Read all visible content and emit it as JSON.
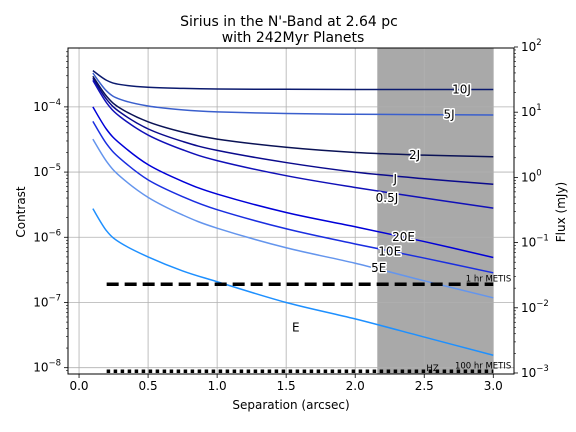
{
  "chart_data": {
    "type": "line",
    "title": "Sirius in the N'-Band at 2.64 pc",
    "subtitle": "with 242Myr Planets",
    "xlabel": "Separation (arcsec)",
    "ylabel": "Contrast",
    "ylabel_right": "Flux (mJy)",
    "xlim": [
      -0.08,
      3.15
    ],
    "ylim": [
      8e-09,
      0.0008
    ],
    "yscale": "log",
    "y2lim": [
      0.000965,
      96.5
    ],
    "grid": true,
    "xticks": [
      "0.0",
      "0.5",
      "1.0",
      "1.5",
      "2.0",
      "2.5",
      "3.0"
    ],
    "xtick_values": [
      0.0,
      0.5,
      1.0,
      1.5,
      2.0,
      2.5,
      3.0
    ],
    "yticks_left": [
      {
        "base": "10",
        "exp": "−8",
        "value": 1e-08
      },
      {
        "base": "10",
        "exp": "−7",
        "value": 1e-07
      },
      {
        "base": "10",
        "exp": "−6",
        "value": 1e-06
      },
      {
        "base": "10",
        "exp": "−5",
        "value": 1e-05
      },
      {
        "base": "10",
        "exp": "−4",
        "value": 0.0001
      }
    ],
    "yticks_right": [
      {
        "base": "10",
        "exp": "−3",
        "value": 0.001
      },
      {
        "base": "10",
        "exp": "−2",
        "value": 0.01
      },
      {
        "base": "10",
        "exp": "−1",
        "value": 0.1
      },
      {
        "base": "10",
        "exp": "0",
        "value": 1
      },
      {
        "base": "10",
        "exp": "1",
        "value": 10
      },
      {
        "base": "10",
        "exp": "2",
        "value": 100
      }
    ],
    "shaded_region": {
      "x_start": 2.16,
      "x_end": 3.0,
      "label": "HZ",
      "color": "#a9a9a9"
    },
    "series": [
      {
        "name": "10J",
        "color": "#0b1a6e",
        "x": [
          0.1,
          0.2,
          0.3,
          0.5,
          0.75,
          1.0,
          1.5,
          2.0,
          2.5,
          3.0
        ],
        "values": [
          0.00036,
          0.000255,
          0.00022,
          0.0002,
          0.000192,
          0.000188,
          0.000186,
          0.000185,
          0.000185,
          0.000185
        ]
      },
      {
        "name": "5J",
        "color": "#3a5fcd",
        "x": [
          0.1,
          0.2,
          0.3,
          0.5,
          0.75,
          1.0,
          1.5,
          2.0,
          2.5,
          3.0
        ],
        "values": [
          0.00033,
          0.000175,
          0.00013,
          0.000103,
          9e-05,
          8.4e-05,
          7.9e-05,
          7.7e-05,
          7.6e-05,
          7.5e-05
        ]
      },
      {
        "name": "2J",
        "color": "#0a1255",
        "x": [
          0.1,
          0.2,
          0.3,
          0.5,
          0.75,
          1.0,
          1.5,
          2.0,
          2.5,
          3.0
        ],
        "values": [
          0.000295,
          0.000145,
          9.5e-05,
          5.9e-05,
          4.1e-05,
          3.2e-05,
          2.4e-05,
          2e-05,
          1.82e-05,
          1.72e-05
        ]
      },
      {
        "name": "J",
        "color": "#0a0a8c",
        "x": [
          0.1,
          0.2,
          0.3,
          0.5,
          0.75,
          1.0,
          1.5,
          2.0,
          2.5,
          3.0
        ],
        "values": [
          0.000275,
          0.00013,
          8.2e-05,
          4.6e-05,
          2.95e-05,
          2.15e-05,
          1.4e-05,
          1e-05,
          7.9e-06,
          6.5e-06
        ]
      },
      {
        "name": "0.5J",
        "color": "#1010b8",
        "x": [
          0.1,
          0.2,
          0.3,
          0.5,
          0.75,
          1.0,
          1.5,
          2.0,
          2.5,
          3.0
        ],
        "values": [
          0.000255,
          0.000115,
          7e-05,
          3.7e-05,
          2.2e-05,
          1.5e-05,
          8.8e-06,
          5.8e-06,
          4e-06,
          2.8e-06
        ]
      },
      {
        "name": "20E",
        "color": "#0000d8",
        "x": [
          0.1,
          0.2,
          0.3,
          0.5,
          0.75,
          1.0,
          1.5,
          2.0,
          2.5,
          3.0
        ],
        "values": [
          0.0001,
          4.5e-05,
          2.7e-05,
          1.3e-05,
          7.2e-06,
          4.6e-06,
          2.4e-06,
          1.45e-06,
          8.6e-07,
          4.9e-07
        ]
      },
      {
        "name": "10E",
        "color": "#1a2ee0",
        "x": [
          0.1,
          0.2,
          0.3,
          0.5,
          0.75,
          1.0,
          1.5,
          2.0,
          2.5,
          3.0
        ],
        "values": [
          6e-05,
          2.7e-05,
          1.6e-05,
          7.6e-06,
          4.2e-06,
          2.65e-06,
          1.35e-06,
          7.9e-07,
          4.8e-07,
          2.85e-07
        ]
      },
      {
        "name": "5E",
        "color": "#6495ed",
        "x": [
          0.1,
          0.2,
          0.3,
          0.5,
          0.75,
          1.0,
          1.5,
          2.0,
          2.5,
          3.0
        ],
        "values": [
          3.2e-05,
          1.45e-05,
          8.5e-06,
          4.1e-06,
          2.2e-06,
          1.38e-06,
          6.9e-07,
          4e-07,
          2.15e-07,
          1.18e-07
        ]
      },
      {
        "name": "E",
        "color": "#1e90ff",
        "x": [
          0.1,
          0.2,
          0.3,
          0.5,
          0.75,
          1.0,
          1.5,
          2.0,
          2.5,
          3.0
        ],
        "values": [
          2.75e-06,
          1.25e-06,
          8.2e-07,
          5e-07,
          3.05e-07,
          2.08e-07,
          1e-07,
          5.6e-08,
          2.95e-08,
          1.55e-08
        ]
      }
    ],
    "curve_label_positions": [
      {
        "name": "10J",
        "x": 2.77,
        "y": 0.000185
      },
      {
        "name": "5J",
        "x": 2.68,
        "y": 7.6e-05
      },
      {
        "name": "2J",
        "x": 2.43,
        "y": 1.82e-05
      },
      {
        "name": "J",
        "x": 2.29,
        "y": 7.9e-06
      },
      {
        "name": "0.5J",
        "x": 2.23,
        "y": 4e-06
      },
      {
        "name": "20E",
        "x": 2.35,
        "y": 1.01e-06
      },
      {
        "name": "10E",
        "x": 2.25,
        "y": 6e-07
      },
      {
        "name": "5E",
        "x": 2.17,
        "y": 3.4e-07
      },
      {
        "name": "E",
        "x": 1.57,
        "y": 4.1e-08
      }
    ],
    "limits": [
      {
        "name": "1 hr METIS",
        "value": 1.9e-07,
        "x_start": 0.2,
        "x_end": 3.0,
        "style": "dashed",
        "label_x": 3.0,
        "label_y": 2.35e-07
      },
      {
        "name": "100 hr METIS",
        "value": 8.8e-09,
        "x_start": 0.2,
        "x_end": 3.0,
        "style": "dotted",
        "label_x": 3.0,
        "label_y": 1.08e-08
      }
    ]
  }
}
